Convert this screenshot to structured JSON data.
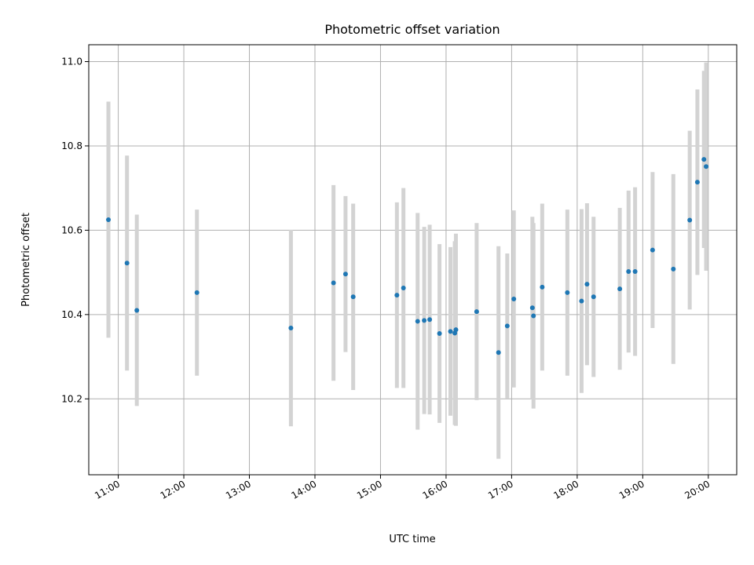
{
  "chart_data": {
    "type": "scatter",
    "title": "Photometric offset variation",
    "xlabel": "UTC time",
    "ylabel": "Photometric offset",
    "x_ticks": [
      "11:00",
      "12:00",
      "13:00",
      "14:00",
      "15:00",
      "16:00",
      "17:00",
      "18:00",
      "19:00",
      "20:00"
    ],
    "y_ticks": [
      "10.2",
      "10.4",
      "10.6",
      "10.8",
      "11.0"
    ],
    "xlim": [
      "10:33",
      "20:26"
    ],
    "ylim": [
      10.02,
      11.04
    ],
    "grid": true,
    "colors": {
      "point": "#1f77b4",
      "error_bar": "#d3d3d3",
      "grid": "#b0b0b0"
    },
    "points": [
      {
        "t": "10:51",
        "y": 10.625,
        "err": 0.28
      },
      {
        "t": "11:08",
        "y": 10.522,
        "err": 0.255
      },
      {
        "t": "11:17",
        "y": 10.41,
        "err": 0.227
      },
      {
        "t": "12:12",
        "y": 10.452,
        "err": 0.197
      },
      {
        "t": "13:38",
        "y": 10.368,
        "err": 0.233
      },
      {
        "t": "14:17",
        "y": 10.475,
        "err": 0.232
      },
      {
        "t": "14:28",
        "y": 10.496,
        "err": 0.185
      },
      {
        "t": "14:35",
        "y": 10.442,
        "err": 0.221
      },
      {
        "t": "15:15",
        "y": 10.446,
        "err": 0.22
      },
      {
        "t": "15:21",
        "y": 10.463,
        "err": 0.237
      },
      {
        "t": "15:34",
        "y": 10.384,
        "err": 0.257
      },
      {
        "t": "15:40",
        "y": 10.386,
        "err": 0.222
      },
      {
        "t": "15:45",
        "y": 10.388,
        "err": 0.225
      },
      {
        "t": "15:54",
        "y": 10.355,
        "err": 0.212
      },
      {
        "t": "16:04",
        "y": 10.36,
        "err": 0.2
      },
      {
        "t": "16:08",
        "y": 10.356,
        "err": 0.218
      },
      {
        "t": "16:09",
        "y": 10.364,
        "err": 0.228
      },
      {
        "t": "16:28",
        "y": 10.407,
        "err": 0.21
      },
      {
        "t": "16:48",
        "y": 10.31,
        "err": 0.252
      },
      {
        "t": "16:56",
        "y": 10.373,
        "err": 0.172
      },
      {
        "t": "17:02",
        "y": 10.437,
        "err": 0.21
      },
      {
        "t": "17:19",
        "y": 10.416,
        "err": 0.216
      },
      {
        "t": "17:20",
        "y": 10.397,
        "err": 0.22
      },
      {
        "t": "17:28",
        "y": 10.465,
        "err": 0.198
      },
      {
        "t": "17:51",
        "y": 10.452,
        "err": 0.197
      },
      {
        "t": "18:04",
        "y": 10.432,
        "err": 0.218
      },
      {
        "t": "18:09",
        "y": 10.472,
        "err": 0.192
      },
      {
        "t": "18:15",
        "y": 10.442,
        "err": 0.19
      },
      {
        "t": "18:39",
        "y": 10.461,
        "err": 0.192
      },
      {
        "t": "18:47",
        "y": 10.502,
        "err": 0.192
      },
      {
        "t": "18:53",
        "y": 10.502,
        "err": 0.2
      },
      {
        "t": "19:09",
        "y": 10.553,
        "err": 0.185
      },
      {
        "t": "19:28",
        "y": 10.508,
        "err": 0.225
      },
      {
        "t": "19:43",
        "y": 10.624,
        "err": 0.212
      },
      {
        "t": "19:50",
        "y": 10.714,
        "err": 0.22
      },
      {
        "t": "19:56",
        "y": 10.768,
        "err": 0.21
      },
      {
        "t": "19:58",
        "y": 10.751,
        "err": 0.247
      }
    ]
  }
}
